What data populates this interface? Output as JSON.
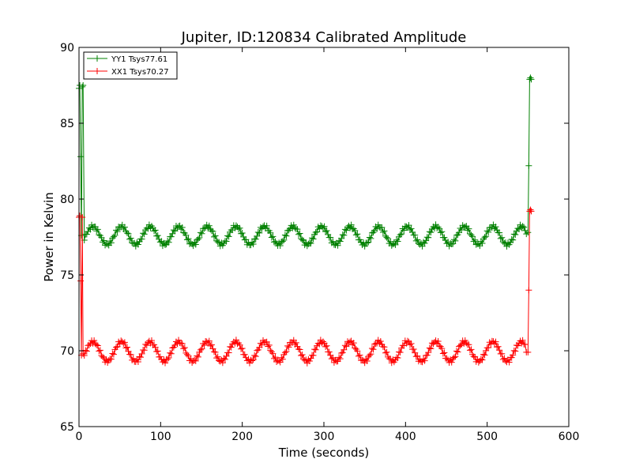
{
  "chart_data": {
    "type": "line",
    "title": "Jupiter, ID:120834 Calibrated Amplitude",
    "xlabel": "Time (seconds)",
    "ylabel": "Power in Kelvin",
    "xlim": [
      0,
      600
    ],
    "ylim": [
      65,
      90
    ],
    "xticks": [
      0,
      100,
      200,
      300,
      400,
      500,
      600
    ],
    "yticks": [
      65,
      70,
      75,
      80,
      85,
      90
    ],
    "grid": false,
    "legend_position": "upper-left",
    "marker": "+",
    "series": [
      {
        "name": "YY1 Tsys77.61",
        "color": "#008000",
        "start": {
          "x": [
            0,
            1,
            2,
            3,
            4,
            5
          ],
          "y": [
            87.3,
            87.5,
            82.8,
            77.6,
            87.4,
            87.5
          ]
        },
        "periodic": {
          "x_start": 5,
          "x_end": 548,
          "mean": 77.6,
          "amplitude": 0.6,
          "period": 35,
          "peak_at": 17
        },
        "end": {
          "x": [
            548,
            550,
            551,
            552,
            553,
            554
          ],
          "y": [
            77.7,
            77.8,
            82.2,
            87.9,
            88.0,
            87.9
          ]
        }
      },
      {
        "name": "XX1 Tsys70.27",
        "color": "#ff0000",
        "start": {
          "x": [
            0,
            1,
            2,
            3,
            4,
            5
          ],
          "y": [
            78.8,
            78.9,
            74.6,
            69.7,
            78.8,
            69.8
          ]
        },
        "periodic": {
          "x_start": 5,
          "x_end": 548,
          "mean": 69.95,
          "amplitude": 0.65,
          "period": 35,
          "peak_at": 17
        },
        "end": {
          "x": [
            548,
            550,
            551,
            552,
            553,
            554
          ],
          "y": [
            69.9,
            69.9,
            74.0,
            79.2,
            79.3,
            79.2
          ]
        }
      }
    ]
  }
}
